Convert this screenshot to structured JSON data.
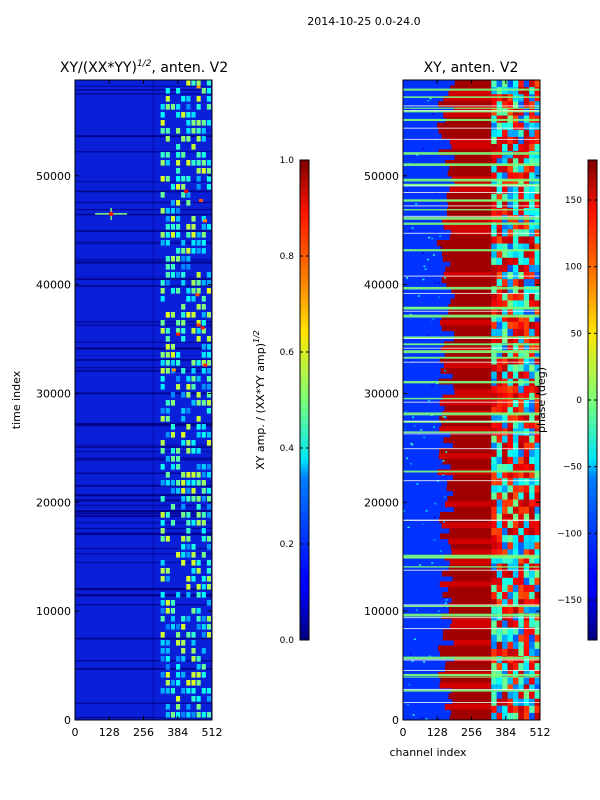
{
  "suptitle": "2014-10-25 0.0-24.0",
  "chart_data": [
    {
      "type": "heatmap",
      "title_prefix": "XY/(XX*YY)",
      "title_power": "1/2",
      "title_suffix": ", anten. V2",
      "xlabel": "",
      "ylabel": "time index",
      "xlim": [
        0,
        512
      ],
      "ylim": [
        0,
        58800
      ],
      "x_ticks": [
        "0",
        "128",
        "256",
        "384",
        "512"
      ],
      "x_tick_values": [
        0,
        128,
        256,
        384,
        512
      ],
      "y_ticks": [
        "0",
        "10000",
        "20000",
        "30000",
        "40000",
        "50000"
      ],
      "y_tick_values": [
        0,
        10000,
        20000,
        30000,
        40000,
        50000
      ],
      "colorbar": {
        "label_prefix": "XY amp. / (XX*YY amp)",
        "label_power": "1/2",
        "range": [
          0.0,
          1.0
        ],
        "ticks": [
          "0.0",
          "0.2",
          "0.4",
          "0.6",
          "0.8",
          "1.0"
        ],
        "tick_values": [
          0.0,
          0.2,
          0.4,
          0.6,
          0.8,
          1.0
        ]
      }
    },
    {
      "type": "heatmap",
      "title": "XY, anten. V2",
      "xlabel": "channel index",
      "ylabel": "",
      "xlim": [
        0,
        512
      ],
      "ylim": [
        0,
        58800
      ],
      "x_ticks": [
        "0",
        "128",
        "256",
        "384",
        "512"
      ],
      "x_tick_values": [
        0,
        128,
        256,
        384,
        512
      ],
      "y_ticks": [
        "0",
        "10000",
        "20000",
        "30000",
        "40000",
        "50000"
      ],
      "y_tick_values": [
        0,
        10000,
        20000,
        30000,
        40000,
        50000
      ],
      "colorbar": {
        "label": "phase (deg)",
        "range": [
          -180,
          180
        ],
        "ticks": [
          "−150",
          "−100",
          "−50",
          "0",
          "50",
          "100",
          "150"
        ],
        "tick_values": [
          -150,
          -100,
          -50,
          0,
          50,
          100,
          150
        ]
      }
    }
  ]
}
